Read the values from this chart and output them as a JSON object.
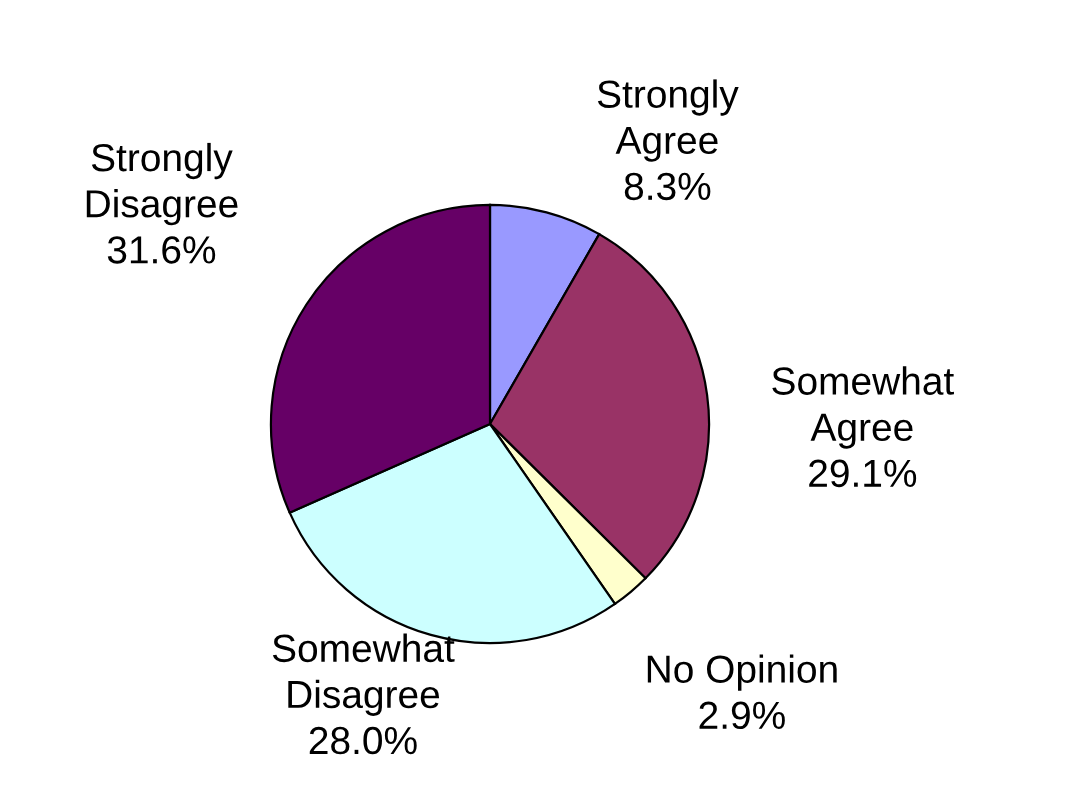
{
  "chart_data": {
    "type": "pie",
    "categories": [
      "Strongly Agree",
      "Somewhat Agree",
      "No Opinion",
      "Somewhat Disagree",
      "Strongly Disagree"
    ],
    "values": [
      8.3,
      29.1,
      2.9,
      28.0,
      31.6
    ],
    "colors": [
      "#9999ff",
      "#993366",
      "#ffffcc",
      "#ccffff",
      "#660066"
    ],
    "value_labels": [
      "8.3%",
      "29.1%",
      "2.9%",
      "28.0%",
      "31.6%"
    ]
  }
}
